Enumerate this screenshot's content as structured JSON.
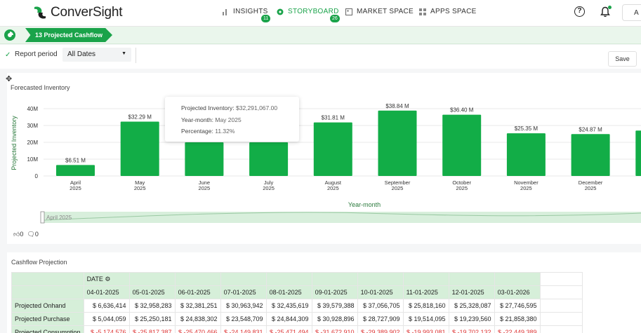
{
  "app": {
    "logo_text": "ConverSight",
    "user_initial": "A"
  },
  "nav": [
    {
      "label": "INSIGHTS",
      "badge": "11",
      "icon": "bar-chart-icon",
      "active": false
    },
    {
      "label": "STORYBOARD",
      "badge": "26",
      "icon": "storyboard-icon",
      "active": true
    },
    {
      "label": "MARKET SPACE",
      "badge": "",
      "icon": "market-icon",
      "active": false
    },
    {
      "label": "APPS SPACE",
      "badge": "",
      "icon": "grid-icon",
      "active": false
    }
  ],
  "breadcrumb": {
    "current": "13 Projected Cashflow"
  },
  "filter": {
    "label": "Report period",
    "value": "All Dates"
  },
  "save_label": "Save",
  "chart_data": {
    "type": "bar",
    "title": "Forecasted Inventory",
    "xlabel": "Year-month",
    "ylabel": "Projected Inventory",
    "ylim": [
      0,
      40
    ],
    "ytick_labels": [
      "0",
      "10M",
      "20M",
      "30M",
      "40M"
    ],
    "categories": [
      {
        "month": "April",
        "year": "2025"
      },
      {
        "month": "May",
        "year": "2025"
      },
      {
        "month": "June",
        "year": "2025"
      },
      {
        "month": "July",
        "year": "2025"
      },
      {
        "month": "August",
        "year": "2025"
      },
      {
        "month": "September",
        "year": "2025"
      },
      {
        "month": "October",
        "year": "2025"
      },
      {
        "month": "November",
        "year": "2025"
      },
      {
        "month": "December",
        "year": "2025"
      },
      {
        "month": "",
        "year": ""
      }
    ],
    "values": [
      6.51,
      32.29,
      20.0,
      20.0,
      31.81,
      38.84,
      36.4,
      25.35,
      24.87,
      27.0
    ],
    "value_labels": [
      "$6.51 M",
      "$32.29 M",
      "",
      "",
      "$31.81 M",
      "$38.84 M",
      "$36.40 M",
      "$25.35 M",
      "$24.87 M",
      ""
    ],
    "color": "#12ad47",
    "grid": true,
    "slider_label": "April 2025"
  },
  "tooltip": {
    "rows": [
      {
        "k": "Projected Inventory:",
        "v": "$32,291,067.00"
      },
      {
        "k": "Year-month:",
        "v": "May 2025"
      },
      {
        "k": "Percentage:",
        "v": "11.32%"
      }
    ]
  },
  "reactions": {
    "likes": "0",
    "comments": "0"
  },
  "table": {
    "title": "Cashflow Projection",
    "date_header": "DATE",
    "dates": [
      "04-01-2025",
      "05-01-2025",
      "06-01-2025",
      "07-01-2025",
      "08-01-2025",
      "09-01-2025",
      "10-01-2025",
      "11-01-2025",
      "12-01-2025",
      "03-01-2026"
    ],
    "rows": [
      {
        "label": "Projected Onhand",
        "values": [
          "$ 6,636,414",
          "$ 32,958,283",
          "$ 32,381,251",
          "$ 30,963,942",
          "$ 32,435,619",
          "$ 39,579,388",
          "$ 37,056,705",
          "$ 25,818,160",
          "$ 25,328,087",
          "$ 27,746,595"
        ],
        "negative": false
      },
      {
        "label": "Projected Purchase",
        "values": [
          "$ 5,044,059",
          "$ 25,250,181",
          "$ 24,838,302",
          "$ 23,548,709",
          "$ 24,844,309",
          "$ 30,928,896",
          "$ 28,727,909",
          "$ 19,514,095",
          "$ 19,239,560",
          "$ 21,858,380"
        ],
        "negative": false
      },
      {
        "label": "Projected Consumption",
        "values": [
          "$ -5,174,576",
          "$ -25,817,387",
          "$ -25,470,466",
          "$ -24,149,831",
          "$ -25,471,494",
          "$ -31,672,910",
          "$ -29,389,902",
          "$ -19,993,081",
          "$ -19,702,132",
          "$ -22,449,389"
        ],
        "negative": true
      }
    ]
  }
}
